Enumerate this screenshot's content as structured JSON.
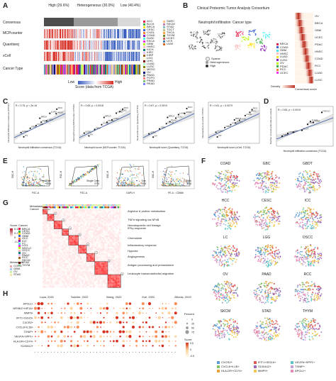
{
  "panels": {
    "A": "A",
    "B": "B",
    "C": "C",
    "D": "D",
    "E": "E",
    "F": "F",
    "G": "G",
    "H": "H"
  },
  "panelA": {
    "groups": [
      "High\n(29.6%)",
      "Heterogeneous\n(30.0%)",
      "Low\n(40.4%)"
    ],
    "group_labels": [
      "High (29.6%)",
      "Heterogeneous (30.0%)",
      "Low (40.4%)"
    ],
    "rows": [
      "Consensus",
      "MCPcounter",
      "Quantiseq",
      "xCell",
      "Cancer Type"
    ],
    "scale_title": "Score (data from TCGA)",
    "scale_low": "Low",
    "scale_high": "High",
    "cancer_types_col1": [
      "ACC",
      "BLCA",
      "BRCA",
      "CESC",
      "CHOL",
      "COAD",
      "DLBC",
      "ESCA",
      "GBM",
      "HNSC",
      "KICH",
      "KIRC",
      "KIRP",
      "LGG",
      "LIHC",
      "LUAD",
      "LUSC",
      "MESO",
      "OV",
      "PAAD",
      "PCPG",
      "PRAD",
      "READ"
    ],
    "cancer_types_col2": [
      "SARC",
      "SKCM",
      "STAD",
      "TGCT",
      "THCA",
      "THYM",
      "UCEC",
      "UCS",
      "UVM"
    ]
  },
  "panelB": {
    "title": "Clinical Proteomic Tumor Analysis Consortium",
    "sub1": "Neutrophil infiltration",
    "sub2": "Cancer type",
    "legend": [
      "Sparse",
      "Heterogeneous",
      "High"
    ],
    "cancers": [
      "BRCA",
      "COAD",
      "GBM",
      "HNSC",
      "LUAD",
      "LUSC",
      "OV",
      "PDAC",
      "RCC",
      "UCEC"
    ],
    "heat_rows": [
      "OV",
      "BRCA",
      "GBM",
      "UCEC",
      "PDAC",
      "HNSC",
      "COAD",
      "RCC",
      "LUAD",
      "LUSC"
    ],
    "density_label": "Density",
    "density_ticks": [
      "0",
      "1"
    ],
    "xlabel": "Consensus score"
  },
  "panelC": [
    {
      "stat": "R = 0.75, p < 2e-16",
      "xlabel": "Neutrophil infiltration consensus (TCGA)",
      "ylabel": "Neutrophil infiltration consensus (CPTAC)"
    },
    {
      "stat": "R = 0.65, p = 0.0018",
      "xlabel": "Neutrophil score (MCPcounter, TCGA)",
      "ylabel": "Neutrophil score (MCPcounter, CPTAC)"
    },
    {
      "stat": "R = 0.67, p = 0.0019",
      "xlabel": "Neutrophil score (Quantiseq, TCGA)",
      "ylabel": "Neutrophil score (Quantiseq, CPTAC)"
    },
    {
      "stat": "R = 0.61, p = 0.0079",
      "xlabel": "Neutrophil score (xCell, TCGA)",
      "ylabel": "Neutrophil score (xCell, CPTAC)"
    }
  ],
  "panelC_points_labels": [
    "UCEC",
    "OV",
    "GBM",
    "COAD",
    "BRCA",
    "LUSC",
    "LUAD",
    "HNSC",
    "RCC",
    "PDAC"
  ],
  "panelD": {
    "stat": "R = 0.84, p = 0.0019",
    "xlabel": "Neutrophil infiltration consensus (TCGA)",
    "ylabel": "Number of neutrophil cells per sample",
    "labels": [
      "NSCLC",
      "LIHC",
      "THYM",
      "STAD",
      "BLCA",
      "OV",
      "CORD",
      "GBM"
    ]
  },
  "panelE": {
    "plots": [
      {
        "xlabel": "FSC-A",
        "ylabel": "SSC-H",
        "gate": "First Gate",
        "value": "65.8"
      },
      {
        "xlabel": "FSC-A",
        "ylabel": "FSC-H",
        "gate": "Single Cells",
        "value": "97.5"
      },
      {
        "xlabel": "DAPI-H",
        "ylabel": "SSC-H",
        "gate": "Live",
        "value": "75.8"
      },
      {
        "xlabel": "PE-A :: CD66b",
        "ylabel": "SSC-H",
        "gate": "CD66b",
        "value": "36.8"
      }
    ]
  },
  "panelF": {
    "facets": [
      "COAD",
      "GBC",
      "GBDT",
      "HCC",
      "CESC",
      "ICC",
      "LC",
      "LGG",
      "OSCC",
      "OV",
      "PAAD",
      "RCC",
      "SKCM",
      "STAD",
      "THYM"
    ],
    "legend": [
      "CXCR2+",
      "CXCL8+IL1B+",
      "HLA-DR+CD74+",
      "IFIT1+ISG15+",
      "S100A12+",
      "MMP9+",
      "VEGFA+SPP1+",
      "TXNIP+",
      "APOL1+"
    ],
    "legend_colors": [
      "#5b9bd5",
      "#86c166",
      "#e8a33d",
      "#e05a5a",
      "#9b6ab8",
      "#f2c94c",
      "#5cc6c6",
      "#c8a0d8",
      "#e58cb8"
    ]
  },
  "panelG": {
    "top_labels": [
      "Metastasis",
      "Cancer"
    ],
    "score_title": "Score",
    "score_ticks": [
      "0.4",
      "0.2",
      "0",
      "-0.2"
    ],
    "cancer_title": "Cancer",
    "cancers": [
      "BRCA",
      "CESC",
      "COAD",
      "GBM",
      "HCC",
      "ICC",
      "LC",
      "LGG",
      "NSCLC",
      "OSCC",
      "OV",
      "PAAD",
      "RCC",
      "SKCM",
      "STAD",
      "THYM"
    ],
    "meta_title": "Metastasis",
    "meta": [
      "CORD",
      "GBM",
      "OV",
      "STAD"
    ],
    "programs": [
      "Arginine & proline metabolism",
      "TNFα signaling via NFκB",
      "Hematopoietic cell lineage\nIFNγ response",
      "Chemokine",
      "Inflammatory response",
      "Hypoxia",
      "Angiogenesis",
      "Antigen processing and presentation",
      "Leukocyte transendothelial migration"
    ],
    "numbers": [
      "1",
      "2",
      "3",
      "4",
      "5",
      "6",
      "7",
      "8",
      "9"
    ]
  },
  "panelH": {
    "sources": [
      "Lupa, 2021",
      "Salcher, 2022",
      "Wang, 2022",
      "Xue, 2022",
      "Zilionis, 2019"
    ],
    "rows": [
      "APOL1+",
      "NFKBIZ+HIF1A+",
      "MMP9+",
      "IFIT1+ISG15+",
      "CXCR2+",
      "CXCL8+IL1B+",
      "TXNIP+",
      "VEGFA+SPP1+",
      "HLA-DR+CD74+",
      "S100A12+"
    ],
    "percent_title": "Percent",
    "percent_ticks": [
      "0",
      "25",
      "50",
      "75"
    ],
    "score_title": "Score",
    "score_ticks": [
      "0.5",
      "0",
      "-0.5"
    ]
  },
  "colors": {
    "high": "#4d4d4d",
    "het": "#9a9a9a",
    "low": "#d9d9d9",
    "score_low": "#3b5fc0",
    "score_high": "#d73027",
    "reg_line": "#3b5ba9",
    "ci": "#d0d0d0",
    "heat_red": "#c0392b"
  }
}
